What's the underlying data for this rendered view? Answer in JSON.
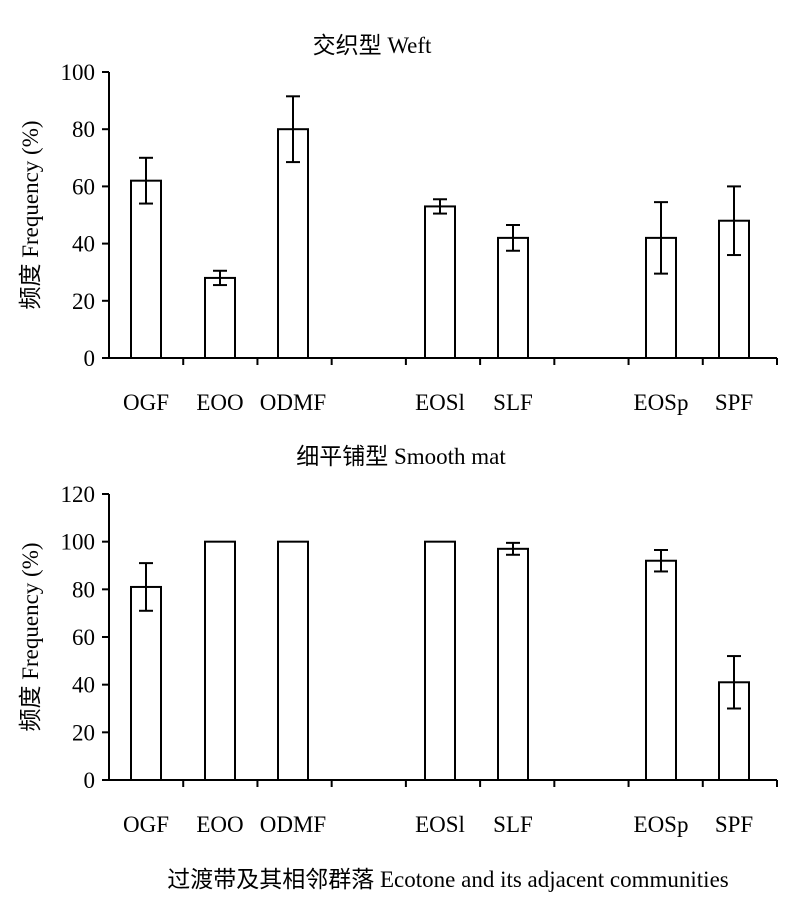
{
  "chart_data": [
    {
      "type": "bar",
      "title": "交织型 Weft",
      "ylabel": "频度 Frequency (%)",
      "xlabel": "",
      "ylim": [
        0,
        100
      ],
      "yticks": [
        0,
        20,
        40,
        60,
        80,
        100
      ],
      "categories": [
        "OGF",
        "EOO",
        "ODMF",
        "EOSl",
        "SLF",
        "EOSp",
        "SPF"
      ],
      "values": [
        62,
        28,
        80,
        53,
        42,
        42,
        48
      ],
      "errors": [
        8,
        2.5,
        11.5,
        2.5,
        4.5,
        12.5,
        12
      ],
      "bar_color": "#ffffff",
      "edge_color": "#000000",
      "grid": false,
      "legend": "none"
    },
    {
      "type": "bar",
      "title": "细平铺型 Smooth mat",
      "ylabel": "频度 Frequency (%)",
      "xlabel": "过渡带及其相邻群落 Ecotone and its adjacent communities",
      "ylim": [
        0,
        120
      ],
      "yticks": [
        0,
        20,
        40,
        60,
        80,
        100,
        120
      ],
      "categories": [
        "OGF",
        "EOO",
        "ODMF",
        "EOSl",
        "SLF",
        "EOSp",
        "SPF"
      ],
      "values": [
        81,
        100,
        100,
        100,
        97,
        92,
        41
      ],
      "errors": [
        10,
        0,
        0,
        0,
        2.5,
        4.5,
        11
      ],
      "bar_color": "#ffffff",
      "edge_color": "#000000",
      "grid": false,
      "legend": "none"
    }
  ]
}
